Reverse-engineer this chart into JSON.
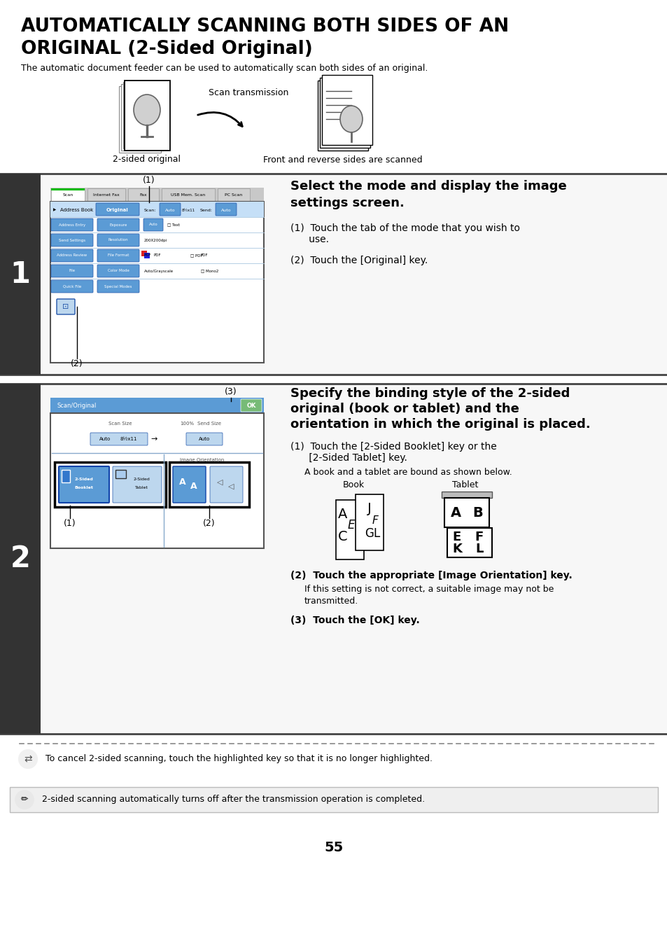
{
  "title_line1": "AUTOMATICALLY SCANNING BOTH SIDES OF AN",
  "title_line2": "ORIGINAL (2-Sided Original)",
  "subtitle": "The automatic document feeder can be used to automatically scan both sides of an original.",
  "scan_transmission_label": "Scan transmission",
  "orig_label": "2-sided original",
  "result_label": "Front and reverse sides are scanned",
  "step1_heading_1": "Select the mode and display the image",
  "step1_heading_2": "settings screen.",
  "step1_1a": "(1)  Touch the tab of the mode that you wish to",
  "step1_1b": "      use.",
  "step1_2": "(2)  Touch the [Original] key.",
  "step2_heading_1": "Specify the binding style of the 2-sided",
  "step2_heading_2": "original (book or tablet) and the",
  "step2_heading_3": "orientation in which the original is placed.",
  "step2_1a": "(1)  Touch the [2-Sided Booklet] key or the",
  "step2_1b": "      [2-Sided Tablet] key.",
  "step2_1_sub": "A book and a tablet are bound as shown below.",
  "step2_2": "(2)  Touch the appropriate [Image Orientation] key.",
  "step2_2_sub1": "If this setting is not correct, a suitable image may not be",
  "step2_2_sub2": "transmitted.",
  "step2_3": "(3)  Touch the [OK] key.",
  "book_label": "Book",
  "tablet_label": "Tablet",
  "cancel_note": "To cancel 2-sided scanning, touch the highlighted key so that it is no longer highlighted.",
  "bottom_note": "2-sided scanning automatically turns off after the transmission operation is completed.",
  "page_number": "55",
  "bg_color": "#ffffff",
  "step_bg": "#333333",
  "ui_blue": "#5b9bd5",
  "ui_light_blue": "#bdd7ee",
  "tab_bg": "#c8c8c8"
}
